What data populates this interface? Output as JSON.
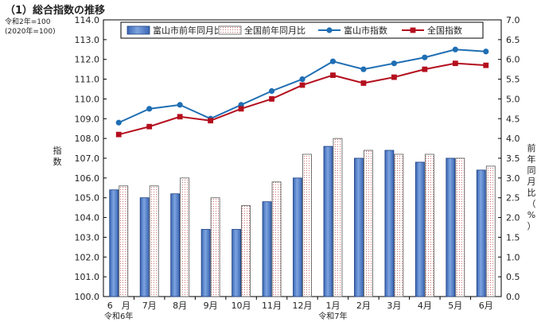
{
  "title": "（1）総合指数の推移",
  "base_note_1": "令和2年=100",
  "base_note_2": "(2020年=100)",
  "left_axis_label": "指数",
  "right_axis_label": "前年同月比（%）",
  "colors": {
    "toyama_bar": "#4a78c4",
    "national_bar_dots": "#c0504d",
    "toyama_line": "#1f6eb4",
    "national_line": "#b40f1e"
  },
  "chart_data": {
    "type": "bar+line",
    "categories": [
      "6　月",
      "7月",
      "8月",
      "9月",
      "10月",
      "11月",
      "12月",
      "1月",
      "2月",
      "3月",
      "4月",
      "5月",
      "6月"
    ],
    "era_labels": [
      {
        "index": 0,
        "text": "令和6年"
      },
      {
        "index": 7,
        "text": "令和7年"
      }
    ],
    "left_axis": {
      "ylim": [
        100.0,
        114.0
      ],
      "ticks": [
        "100.0",
        "101.0",
        "102.0",
        "103.0",
        "104.0",
        "105.0",
        "106.0",
        "107.0",
        "108.0",
        "109.0",
        "110.0",
        "111.0",
        "112.0",
        "113.0",
        "114.0"
      ]
    },
    "right_axis": {
      "ylim": [
        0.0,
        7.0
      ],
      "ticks": [
        "0.0",
        "0.5",
        "1.0",
        "1.5",
        "2.0",
        "2.5",
        "3.0",
        "3.5",
        "4.0",
        "4.5",
        "5.0",
        "5.5",
        "6.0",
        "6.5",
        "7.0"
      ]
    },
    "bar_series": [
      {
        "name": "富山市前年同月比",
        "axis": "right",
        "style": "solid-blue",
        "values": [
          2.7,
          2.5,
          2.6,
          1.7,
          1.7,
          2.4,
          3.0,
          3.8,
          3.5,
          3.7,
          3.4,
          3.5,
          3.2
        ]
      },
      {
        "name": "全国前年同月比",
        "axis": "right",
        "style": "dotted",
        "values": [
          2.8,
          2.8,
          3.0,
          2.5,
          2.3,
          2.9,
          3.6,
          4.0,
          3.7,
          3.6,
          3.6,
          3.5,
          3.3
        ]
      }
    ],
    "line_series": [
      {
        "name": "富山市指数",
        "axis": "left",
        "marker": "circle",
        "values": [
          108.8,
          109.5,
          109.7,
          109.0,
          109.7,
          110.4,
          111.0,
          111.9,
          111.5,
          111.8,
          112.1,
          112.5,
          112.4
        ]
      },
      {
        "name": "全国指数",
        "axis": "left",
        "marker": "square",
        "values": [
          108.2,
          108.6,
          109.1,
          108.9,
          109.5,
          110.0,
          110.7,
          111.2,
          110.8,
          111.1,
          111.5,
          111.8,
          111.7
        ]
      }
    ],
    "legend_position": "top",
    "grid": false
  }
}
